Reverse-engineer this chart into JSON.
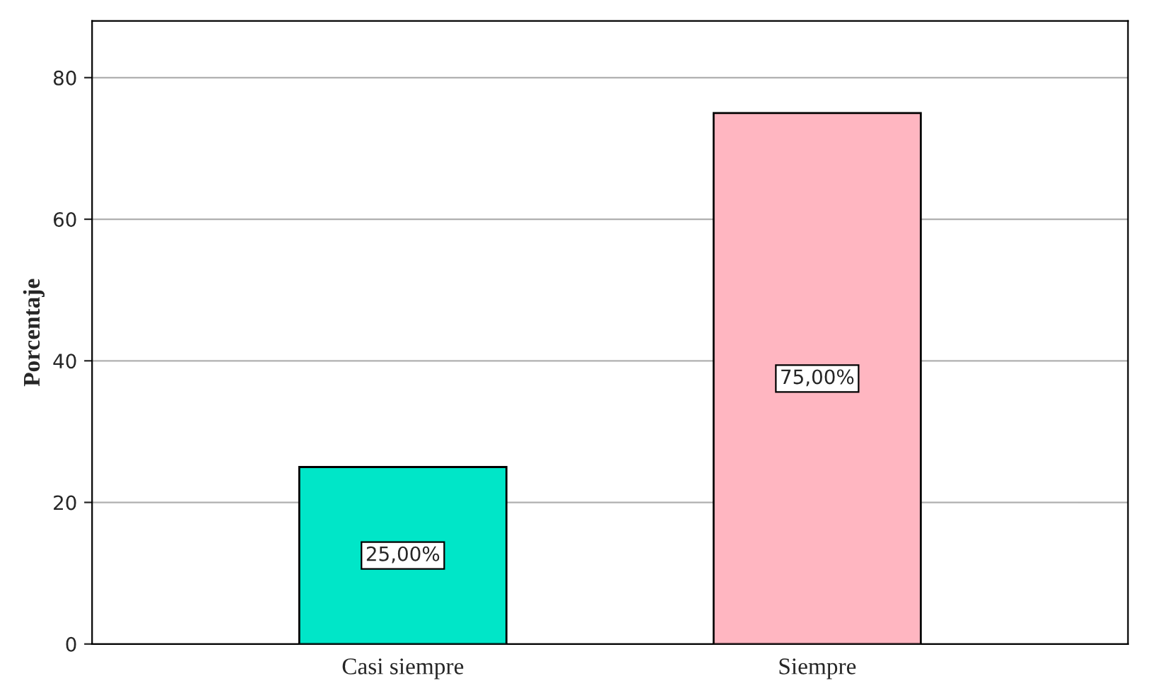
{
  "chart_data": {
    "type": "bar",
    "ylabel": "Porcentaje",
    "categories": [
      "Casi siempre",
      "Siempre"
    ],
    "values": [
      25,
      75
    ],
    "colors": [
      "#00e6c8",
      "#ffb6c1"
    ],
    "value_labels": [
      "25,00%",
      "75,00%"
    ],
    "ylim": [
      0,
      88
    ],
    "yticks": [
      0,
      20,
      40,
      60,
      80
    ],
    "grid": "y"
  }
}
